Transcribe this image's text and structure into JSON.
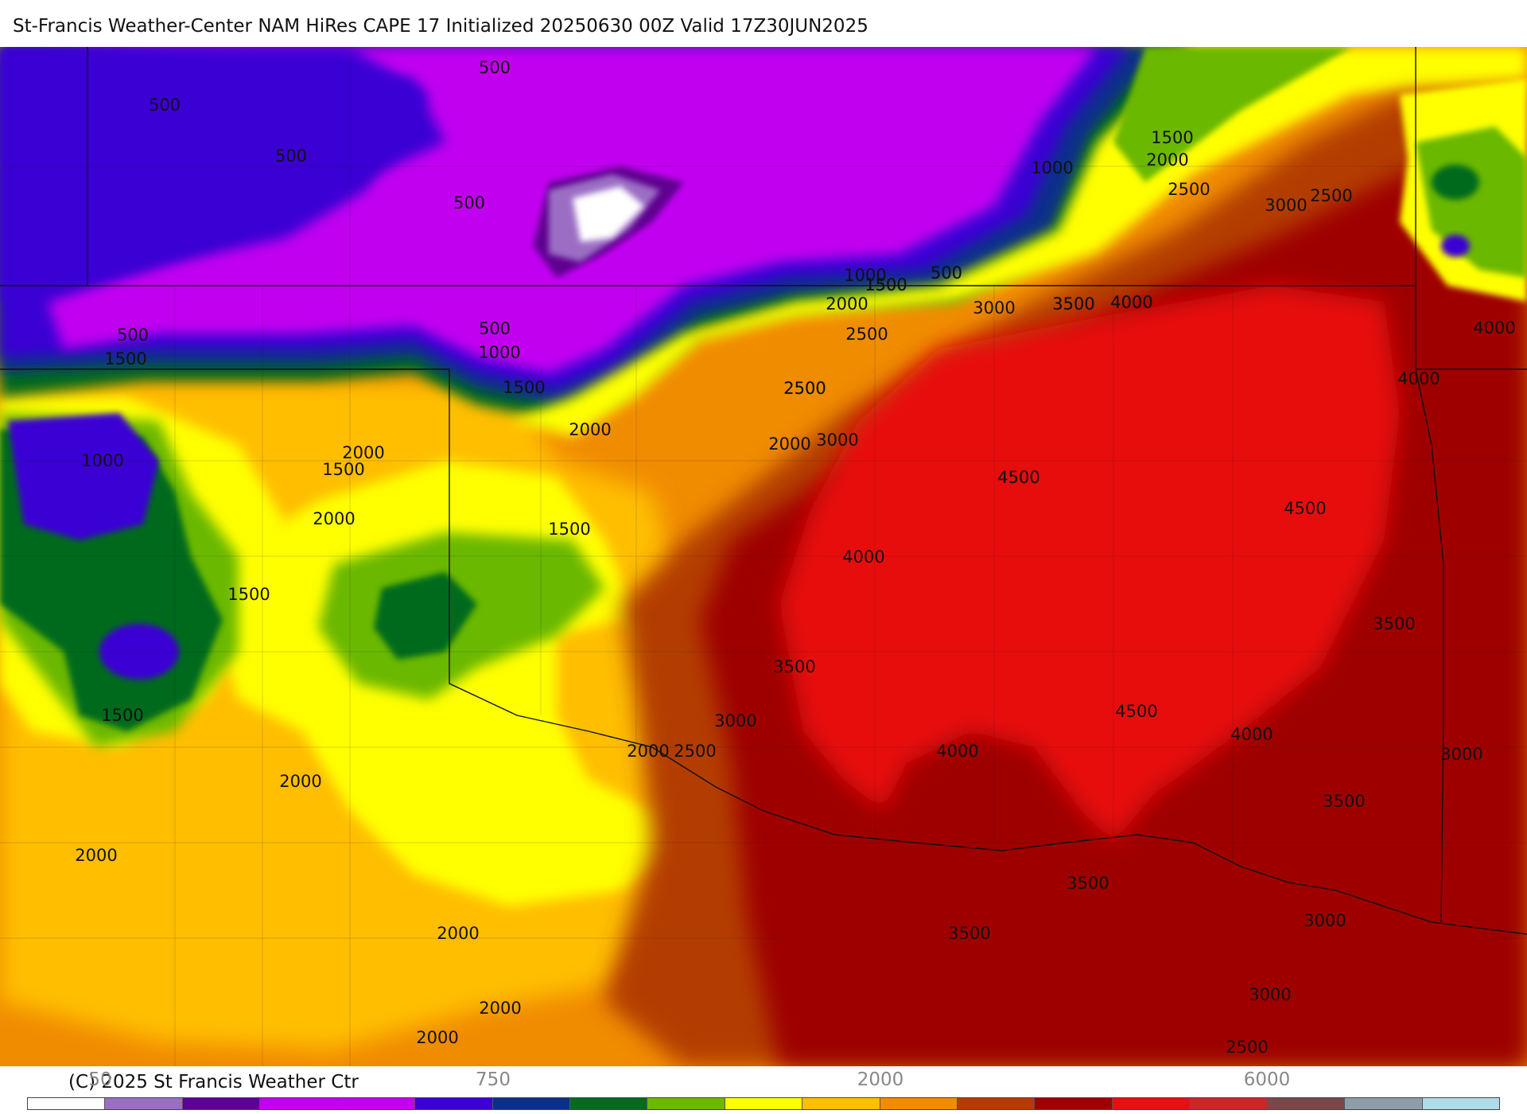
{
  "header": {
    "title": "St-Francis Weather-Center NAM HiRes CAPE  17 Initialized 20250630 00Z Valid 17Z30JUN2025"
  },
  "footer": {
    "copyright": "(C) 2025 St Francis Weather Ctr"
  },
  "color_scale": {
    "colors": [
      "#ffffff",
      "#9b6ec4",
      "#5e0090",
      "#c200f0",
      "#c200f0",
      "#3b00d4",
      "#0a2f8c",
      "#066b1e",
      "#6ab800",
      "#ffff00",
      "#ffbe00",
      "#f08c00",
      "#b33c00",
      "#9e0000",
      "#e81010",
      "#c82828",
      "#7a4848",
      "#8c9ea8",
      "#aedce8"
    ],
    "tick_labels": [
      {
        "text": "50"
      },
      {
        "text": "750"
      },
      {
        "text": "2000"
      },
      {
        "text": "6000"
      }
    ]
  },
  "map": {
    "cape_fill_colors": {
      "c0": "#ffffff",
      "c250": "#9b6ec4",
      "c375": "#5e0090",
      "c500": "#c200f0",
      "c750": "#3b00d4",
      "c900": "#0a2f8c",
      "c1000": "#066b1e",
      "c1250": "#6ab800",
      "c1500": "#ffff00",
      "c1750": "#ffbe00",
      "c2000": "#f08c00",
      "c2500": "#b33c00",
      "c3000": "#9e0000",
      "c4000": "#e81010"
    },
    "contour_labels": [
      {
        "text": "500"
      },
      {
        "text": "500"
      },
      {
        "text": "500"
      },
      {
        "text": "500"
      },
      {
        "text": "500"
      },
      {
        "text": "500"
      },
      {
        "text": "500"
      },
      {
        "text": "500"
      },
      {
        "text": "1000"
      },
      {
        "text": "1000"
      },
      {
        "text": "1000"
      },
      {
        "text": "1000"
      },
      {
        "text": "1500"
      },
      {
        "text": "1500"
      },
      {
        "text": "1500"
      },
      {
        "text": "1500"
      },
      {
        "text": "1500"
      },
      {
        "text": "1500"
      },
      {
        "text": "1500"
      },
      {
        "text": "1500"
      },
      {
        "text": "1500"
      },
      {
        "text": "2000"
      },
      {
        "text": "2000"
      },
      {
        "text": "2000"
      },
      {
        "text": "2000"
      },
      {
        "text": "2000"
      },
      {
        "text": "2000"
      },
      {
        "text": "2000"
      },
      {
        "text": "2000"
      },
      {
        "text": "2000"
      },
      {
        "text": "2000"
      },
      {
        "text": "2000"
      },
      {
        "text": "2000"
      },
      {
        "text": "2500"
      },
      {
        "text": "2500"
      },
      {
        "text": "2500"
      },
      {
        "text": "2500"
      },
      {
        "text": "2500"
      },
      {
        "text": "2500"
      },
      {
        "text": "2500"
      },
      {
        "text": "3000"
      },
      {
        "text": "3000"
      },
      {
        "text": "3000"
      },
      {
        "text": "3000"
      },
      {
        "text": "3000"
      },
      {
        "text": "3000"
      },
      {
        "text": "3000"
      },
      {
        "text": "3500"
      },
      {
        "text": "3500"
      },
      {
        "text": "3500"
      },
      {
        "text": "3500"
      },
      {
        "text": "3500"
      },
      {
        "text": "3500"
      },
      {
        "text": "3500"
      },
      {
        "text": "4000"
      },
      {
        "text": "4000"
      },
      {
        "text": "4000"
      },
      {
        "text": "4000"
      },
      {
        "text": "4000"
      },
      {
        "text": "4000"
      },
      {
        "text": "4000"
      },
      {
        "text": "4500"
      },
      {
        "text": "4500"
      },
      {
        "text": "4500"
      },
      {
        "text": "4500"
      }
    ]
  }
}
